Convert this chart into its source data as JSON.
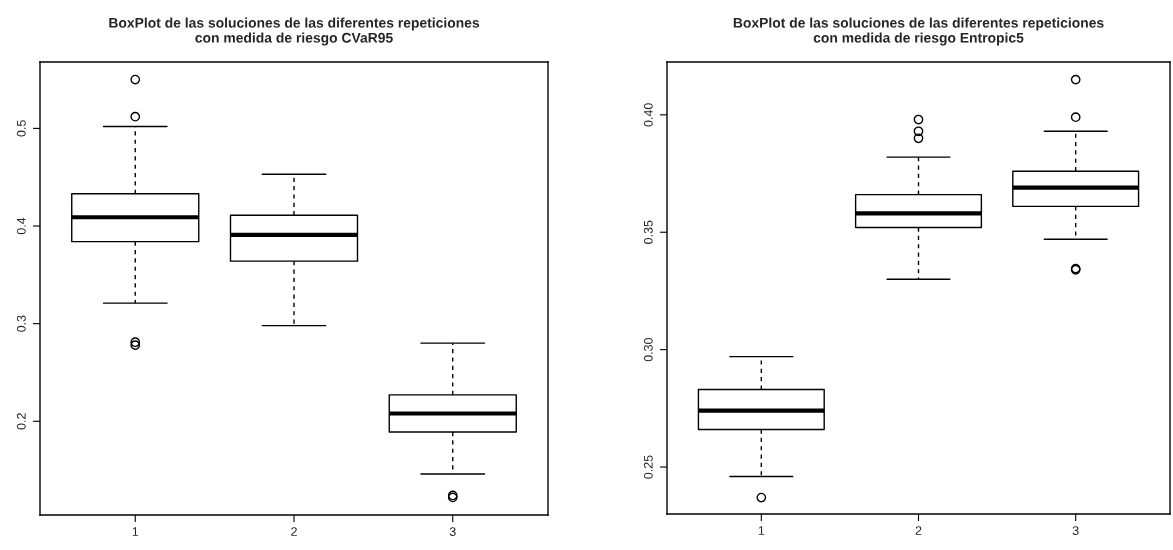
{
  "chart_data": [
    {
      "type": "box",
      "title": "BoxPlot de las soluciones de las diferentes repeticiones\ncon medida de riesgo CVaR95",
      "categories": [
        "1",
        "2",
        "3"
      ],
      "boxes": [
        {
          "low": 0.321,
          "q1": 0.384,
          "median": 0.409,
          "q3": 0.433,
          "high": 0.502,
          "outliers": [
            0.55,
            0.512,
            0.281,
            0.278
          ]
        },
        {
          "low": 0.298,
          "q1": 0.364,
          "median": 0.391,
          "q3": 0.411,
          "high": 0.453
        },
        {
          "low": 0.146,
          "q1": 0.189,
          "median": 0.208,
          "q3": 0.227,
          "high": 0.28,
          "outliers": [
            0.124,
            0.122
          ]
        }
      ],
      "ylim": [
        0.104,
        0.568
      ],
      "yticks": [
        0.2,
        0.3,
        0.4,
        0.5
      ],
      "grid": false,
      "marker": "circle"
    },
    {
      "type": "box",
      "title": "BoxPlot de las soluciones de las diferentes repeticiones\ncon medida de riesgo Entropic5",
      "categories": [
        "1",
        "2",
        "3"
      ],
      "boxes": [
        {
          "low": 0.246,
          "q1": 0.266,
          "median": 0.274,
          "q3": 0.283,
          "high": 0.297,
          "outliers": [
            0.237
          ]
        },
        {
          "low": 0.33,
          "q1": 0.352,
          "median": 0.358,
          "q3": 0.366,
          "high": 0.382,
          "outliers": [
            0.398,
            0.393,
            0.39
          ]
        },
        {
          "low": 0.347,
          "q1": 0.361,
          "median": 0.369,
          "q3": 0.376,
          "high": 0.393,
          "outliers": [
            0.415,
            0.399,
            0.3345,
            0.334
          ]
        }
      ],
      "ylim": [
        0.23,
        0.4225
      ],
      "yticks": [
        {
          "value": 0.25,
          "label": "0.25"
        },
        {
          "value": 0.3,
          "label": "0.30"
        },
        {
          "value": 0.35,
          "label": "0.35"
        },
        {
          "value": 0.4,
          "label": "0.40"
        }
      ],
      "grid": false,
      "marker": "circle"
    }
  ]
}
